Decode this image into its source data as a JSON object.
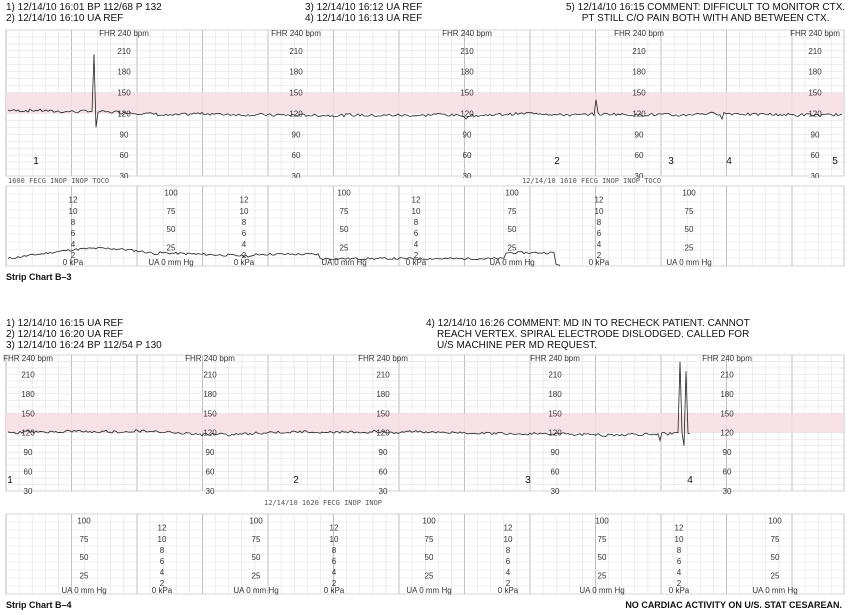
{
  "chart_b3": {
    "annotations_left": [
      "1) 12/14/10 16:01 BP 112/68 P 132",
      "2) 12/14/10 16:10 UA REF"
    ],
    "annotations_mid": [
      "3) 12/14/10 16:12 UA REF",
      "4) 12/14/10 16:13 UA REF"
    ],
    "annotations_right": [
      "5) 12/14/10 16:15 COMMENT: DIFFICULT TO MONITOR CTX.",
      "PT STILL C/O PAIN BOTH WITH AND BETWEEN CTX."
    ],
    "fhr_header": "FHR 240 bpm",
    "fhr_scale": [
      "210",
      "180",
      "150",
      "120",
      "90",
      "60",
      "30"
    ],
    "event_marks": [
      "1",
      "2",
      "3",
      "4",
      "5"
    ],
    "toco_left_text": "1600 FECG INOP INOP TOCO",
    "toco_mid_text": "12/14/10 1610 FECG INOP INOP TOCO",
    "toco_scale_mmhg": [
      "100",
      "75",
      "50",
      "25"
    ],
    "toco_scale_kpa": [
      "12",
      "10",
      "8",
      "6",
      "4",
      "2"
    ],
    "kpa_label": "0 kPa",
    "ua_label": "UA  0  mm Hg",
    "label": "Strip Chart B–3"
  },
  "chart_b4": {
    "annotations_left": [
      "1) 12/14/10 16:15 UA REF",
      "2) 12/14/10 16:20 UA REF",
      "3) 12/14/10 16:24 BP 112/54 P 130"
    ],
    "annotations_right": [
      "4) 12/14/10 16:26 COMMENT: MD IN TO RECHECK PATIENT. CANNOT",
      "REACH VERTEX. SPIRAL ELECTRODE DISLODGED. CALLED FOR",
      "U/S MACHINE PER MD REQUEST."
    ],
    "fhr_header": "FHR 240 bpm",
    "fhr_scale": [
      "210",
      "180",
      "150",
      "120",
      "90",
      "60",
      "30"
    ],
    "event_marks": [
      "1",
      "2",
      "3",
      "4"
    ],
    "toco_text": "12/14/10 1620 FECG INOP INOP",
    "toco_scale_mmhg": [
      "100",
      "75",
      "50",
      "25"
    ],
    "toco_scale_kpa": [
      "12",
      "10",
      "8",
      "6",
      "4",
      "2"
    ],
    "kpa_label": "0 kPa",
    "ua_label": "UA  0  mm Hg",
    "label": "Strip Chart B–4",
    "footnote": "NO CARDIAC ACTIVITY ON U/S. STAT CESAREAN."
  },
  "colors": {
    "grid": "#b8b8b8",
    "grid_minor": "#e2e2e2",
    "band": "#f6dde4",
    "trace": "#222222"
  }
}
